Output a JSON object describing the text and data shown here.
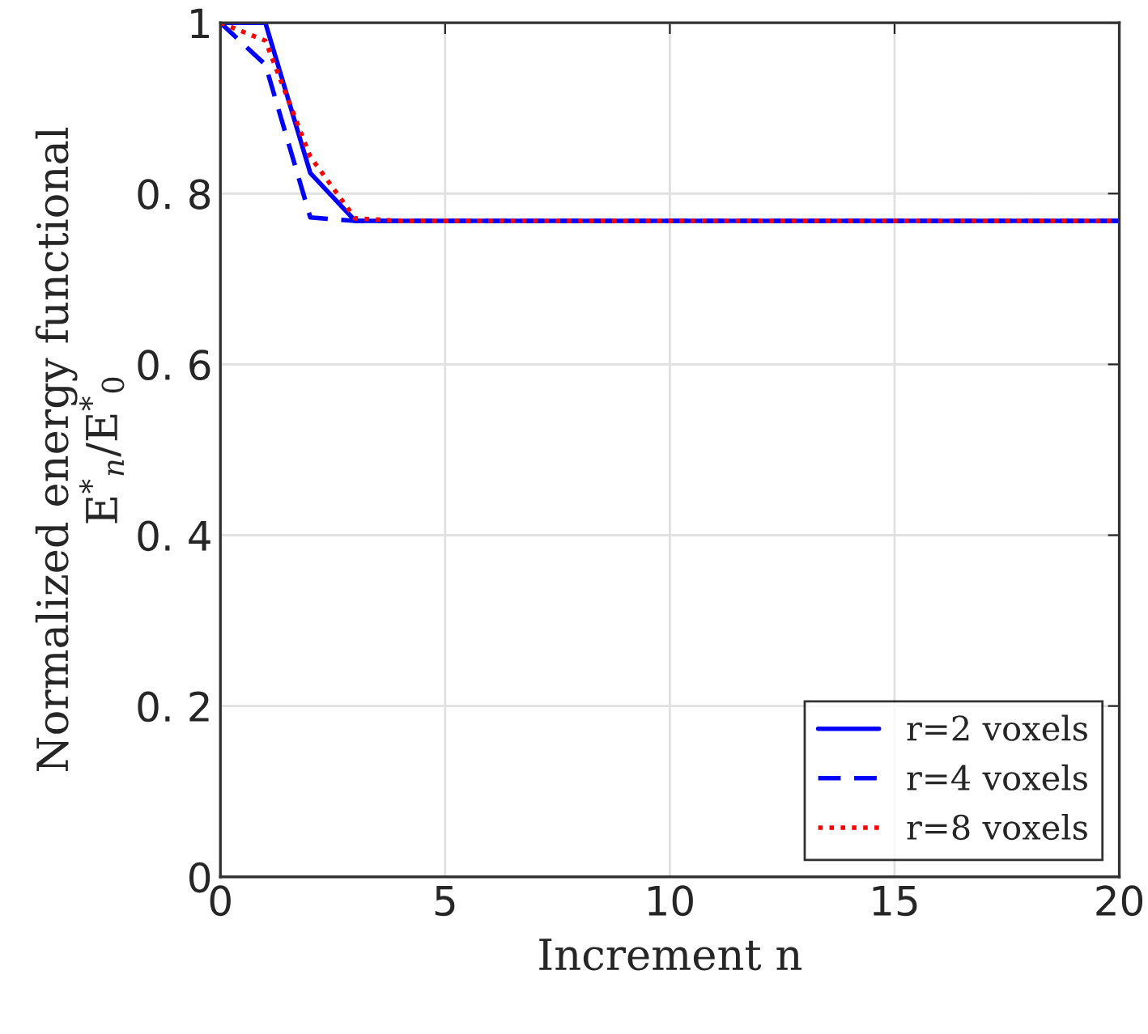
{
  "chart_data": {
    "type": "line",
    "xlabel": "Increment n",
    "ylabel": "Normalized energy functional\nE$^{*}$$_{n}$/E$^{*}$$_{0}$",
    "x": [
      0,
      1,
      2,
      3,
      4,
      5,
      6,
      7,
      8,
      9,
      10,
      11,
      12,
      13,
      14,
      15,
      16,
      17,
      18,
      19,
      20
    ],
    "series": [
      {
        "name": "r=2 voxels",
        "color": "#0000ff",
        "line_style": "solid",
        "values": [
          1,
          1,
          0.824,
          0.768,
          0.768,
          0.768,
          0.768,
          0.768,
          0.768,
          0.768,
          0.768,
          0.768,
          0.768,
          0.768,
          0.768,
          0.768,
          0.768,
          0.768,
          0.768,
          0.768,
          0.768
        ]
      },
      {
        "name": "r=4 voxels",
        "color": "#0000ff",
        "line_style": "dashed",
        "values": [
          1,
          0.951,
          0.772,
          0.768,
          0.768,
          0.768,
          0.768,
          0.768,
          0.768,
          0.768,
          0.768,
          0.768,
          0.768,
          0.768,
          0.768,
          0.768,
          0.768,
          0.768,
          0.768,
          0.768,
          0.768
        ]
      },
      {
        "name": "r=8 voxels",
        "color": "#ff0000",
        "line_style": "dotted",
        "values": [
          1,
          0.979,
          0.843,
          0.771,
          0.768,
          0.768,
          0.768,
          0.768,
          0.768,
          0.768,
          0.768,
          0.768,
          0.768,
          0.768,
          0.768,
          0.768,
          0.768,
          0.768,
          0.768,
          0.768,
          0.768
        ]
      }
    ],
    "xlim": [
      0,
      20
    ],
    "xticks": [
      0,
      5,
      10,
      15,
      20
    ],
    "ylim": [
      0,
      1
    ],
    "yticks": [
      0,
      {
        "value": 0.2,
        "label": "0. 2"
      },
      {
        "value": 0.4,
        "label": "0. 4"
      },
      {
        "value": 0.6,
        "label": "0. 6"
      },
      {
        "value": 0.8,
        "label": "0. 8"
      },
      1
    ],
    "grid": true,
    "legend": "bottom right"
  }
}
